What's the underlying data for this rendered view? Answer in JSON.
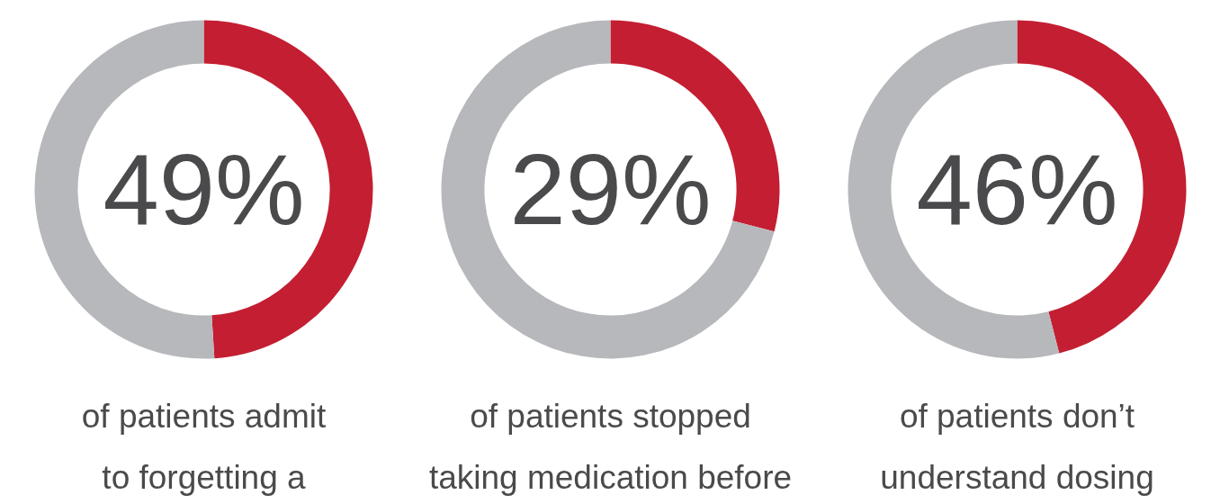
{
  "chart_data": [
    {
      "type": "donut",
      "categories": [
        null,
        null
      ],
      "values": [
        49,
        51
      ],
      "colors": [
        "#c41e32",
        "#b7b8bc"
      ],
      "value_labels": [
        "49%",
        null
      ],
      "title": "of patients admit\nto forgetting a"
    },
    {
      "type": "donut",
      "categories": [
        null,
        null
      ],
      "values": [
        29,
        71
      ],
      "colors": [
        "#c41e32",
        "#b7b8bc"
      ],
      "value_labels": [
        "29%",
        null
      ],
      "title": "of patients stopped\ntaking medication before"
    },
    {
      "type": "donut",
      "categories": [
        null,
        null
      ],
      "values": [
        46,
        54
      ],
      "colors": [
        "#c41e32",
        "#b7b8bc"
      ],
      "value_labels": [
        "46%",
        null
      ],
      "title": "of patients don’t\nunderstand dosing"
    }
  ]
}
